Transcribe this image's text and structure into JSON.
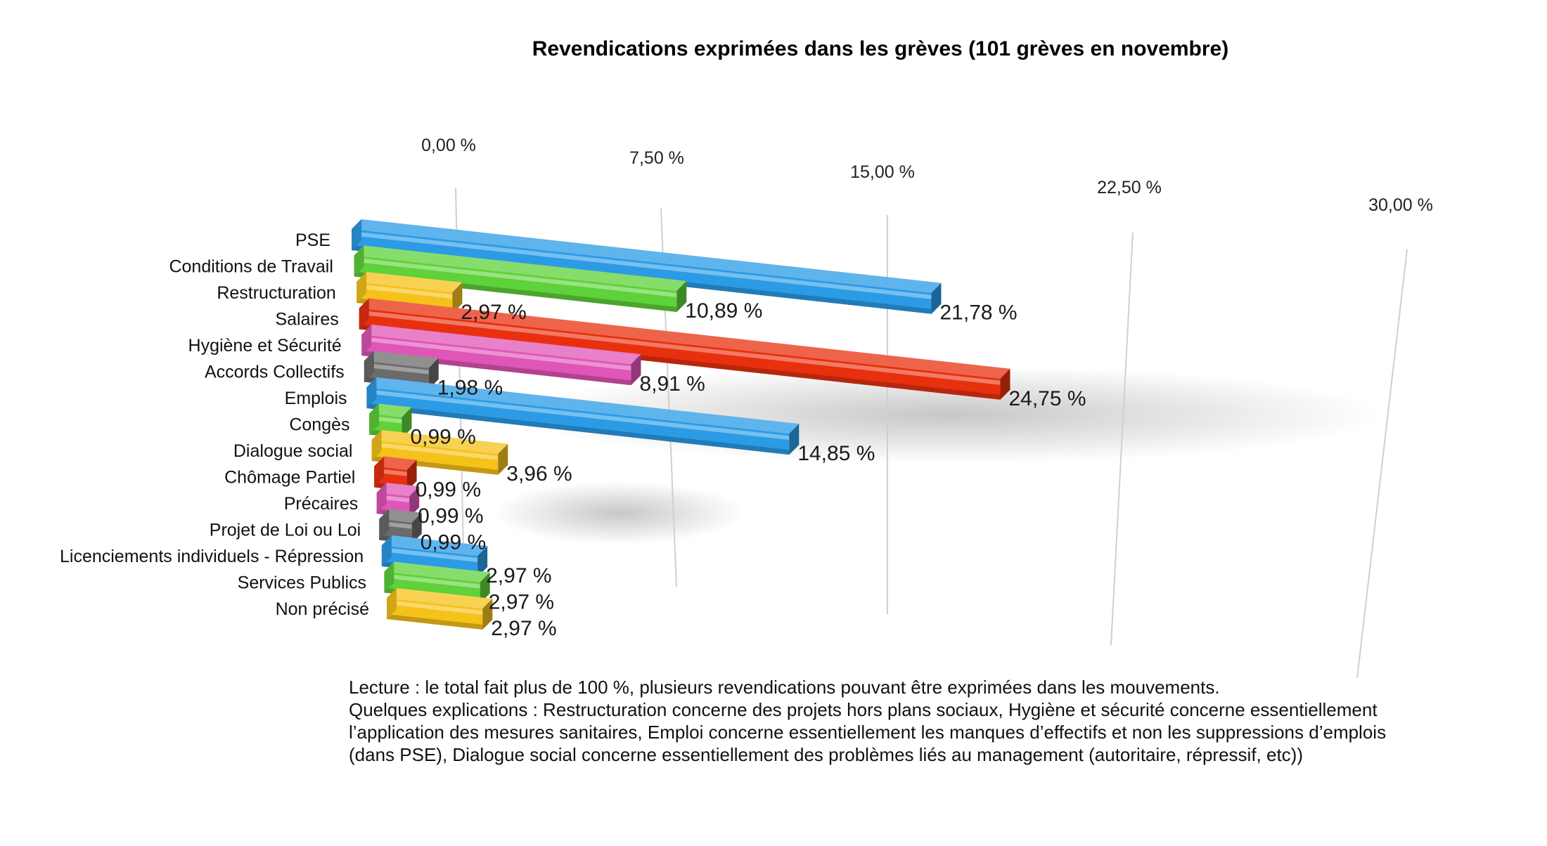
{
  "chart_data": {
    "type": "bar",
    "title": "Revendications exprimées dans les grèves (101 grèves en novembre)",
    "orientation": "horizontal",
    "style": "3d",
    "grid": true,
    "xlim": [
      0,
      30
    ],
    "ticks": [
      "0,00 %",
      "7,50 %",
      "15,00 %",
      "22,50 %",
      "30,00 %"
    ],
    "categories": [
      "PSE",
      "Conditions de Travail",
      "Restructuration",
      "Salaires",
      "Hygiène et Sécurité",
      "Accords Collectifs",
      "Emplois",
      "Congès",
      "Dialogue social",
      "Chômage Partiel",
      "Précaires",
      "Projet de Loi ou Loi",
      "Licenciements individuels - Répression",
      "Services Publics",
      "Non précisé"
    ],
    "values": [
      21.78,
      10.89,
      2.97,
      24.75,
      8.91,
      1.98,
      14.85,
      0.99,
      3.96,
      0.99,
      0.99,
      0.99,
      2.97,
      2.97,
      2.97
    ],
    "labels": [
      "21,78 %",
      "10,89 %",
      "2,97 %",
      "24,75 %",
      "8,91 %",
      "1,98 %",
      "14,85 %",
      "0,99 %",
      "3,96 %",
      "0,99 %",
      "0,99 %",
      "0,99 %",
      "2,97 %",
      "2,97 %",
      "2,97 %"
    ],
    "colors": [
      "#2b9be6",
      "#5fd13a",
      "#f5c21a",
      "#e8300f",
      "#e055b8",
      "#6b6b6b",
      "#2b9be6",
      "#5fd13a",
      "#f5c21a",
      "#e8300f",
      "#e055b8",
      "#6b6b6b",
      "#2b9be6",
      "#5fd13a",
      "#f5c21a"
    ]
  },
  "note": {
    "line1": "Lecture : le total fait plus de 100 %, plusieurs revendications pouvant être exprimées dans les mouvements.",
    "line2": "Quelques explications : Restructuration concerne des projets hors plans sociaux, Hygiène et sécurité concerne essentiellement l’application des mesures sanitaires, Emploi concerne essentiellement les manques d’effectifs et non les suppressions d’emplois (dans PSE), Dialogue social concerne essentiellement des problèmes liés au management (autoritaire, répressif, etc))"
  }
}
